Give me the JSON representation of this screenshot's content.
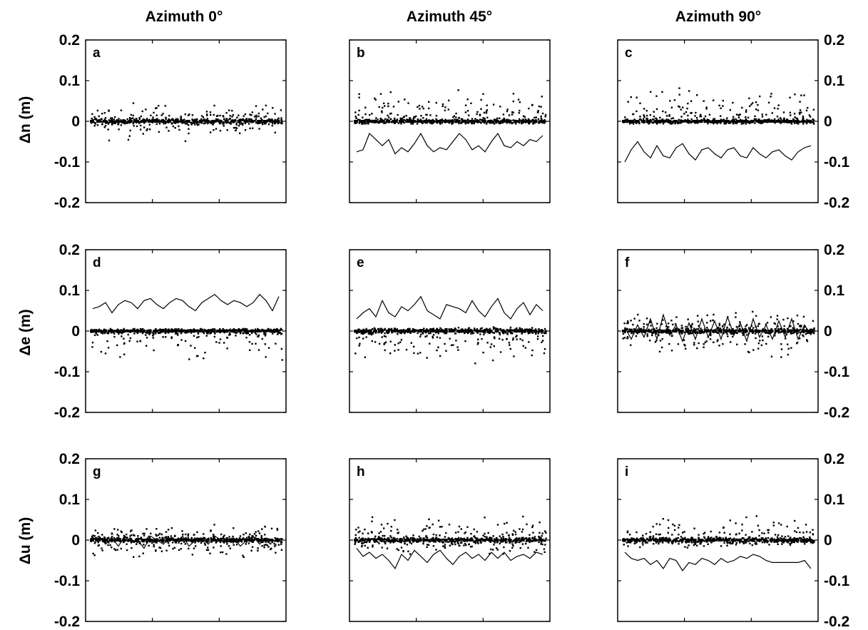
{
  "column_titles": [
    "Azimuth 0°",
    "Azimuth 45°",
    "Azimuth 90°"
  ],
  "row_ylabels": [
    "Δn (m)",
    "Δe (m)",
    "Δu (m)"
  ],
  "colors": {
    "ink": "#000000",
    "background": "#ffffff"
  },
  "chart_data": [
    {
      "type": "scatter",
      "panel": "a",
      "row": 0,
      "col": 0,
      "title": "",
      "xlabel": "",
      "ylabel": "Δn (m)",
      "ylim": [
        -0.2,
        0.2
      ],
      "yticks": [
        0.2,
        0.1,
        0,
        -0.1,
        -0.2
      ],
      "ytick_labels": [
        "0.2",
        "0.1",
        "0",
        "-0.1",
        "-0.2"
      ],
      "grid": false,
      "scatter": {
        "center": 0.0,
        "up": 0.045,
        "down": -0.05
      },
      "line": null
    },
    {
      "type": "scatter",
      "panel": "b",
      "row": 0,
      "col": 1,
      "title": "",
      "xlabel": "",
      "ylabel": "",
      "ylim": [
        -0.2,
        0.2
      ],
      "yticks": [
        0.2,
        0.1,
        0,
        -0.1,
        -0.2
      ],
      "ytick_labels": [],
      "grid": false,
      "scatter": {
        "center": 0.0,
        "up": 0.085,
        "down": -0.005
      },
      "line": [
        -0.075,
        -0.07,
        -0.03,
        -0.045,
        -0.06,
        -0.045,
        -0.08,
        -0.065,
        -0.075,
        -0.055,
        -0.03,
        -0.06,
        -0.075,
        -0.065,
        -0.07,
        -0.05,
        -0.03,
        -0.045,
        -0.07,
        -0.06,
        -0.075,
        -0.05,
        -0.03,
        -0.06,
        -0.065,
        -0.05,
        -0.06,
        -0.045,
        -0.05,
        -0.035
      ]
    },
    {
      "type": "scatter",
      "panel": "c",
      "row": 0,
      "col": 2,
      "title": "",
      "xlabel": "",
      "ylabel": "Δn (m)",
      "ylim": [
        -0.2,
        0.2
      ],
      "yticks": [
        0.2,
        0.1,
        0,
        -0.1,
        -0.2
      ],
      "ytick_labels": [
        "0.2",
        "0.1",
        "0",
        "-0.1",
        "-0.2"
      ],
      "grid": false,
      "scatter": {
        "center": 0.0,
        "up": 0.095,
        "down": -0.003
      },
      "line": [
        -0.1,
        -0.07,
        -0.05,
        -0.075,
        -0.09,
        -0.06,
        -0.085,
        -0.09,
        -0.065,
        -0.055,
        -0.08,
        -0.095,
        -0.07,
        -0.065,
        -0.08,
        -0.09,
        -0.07,
        -0.065,
        -0.085,
        -0.09,
        -0.065,
        -0.08,
        -0.09,
        -0.075,
        -0.07,
        -0.085,
        -0.095,
        -0.075,
        -0.065,
        -0.06
      ]
    },
    {
      "type": "scatter",
      "panel": "d",
      "row": 1,
      "col": 0,
      "title": "",
      "xlabel": "",
      "ylabel": "Δe (m)",
      "ylim": [
        -0.2,
        0.2
      ],
      "yticks": [
        0.2,
        0.1,
        0,
        -0.1,
        -0.2
      ],
      "ytick_labels": [
        "0.2",
        "0.1",
        "0",
        "-0.1",
        "-0.2"
      ],
      "grid": false,
      "scatter": {
        "center": 0.0,
        "up": 0.005,
        "down": -0.09
      },
      "line": [
        0.055,
        0.06,
        0.07,
        0.045,
        0.065,
        0.075,
        0.07,
        0.055,
        0.075,
        0.08,
        0.065,
        0.055,
        0.07,
        0.08,
        0.075,
        0.06,
        0.05,
        0.07,
        0.08,
        0.09,
        0.075,
        0.065,
        0.075,
        0.07,
        0.06,
        0.07,
        0.09,
        0.075,
        0.05,
        0.085
      ]
    },
    {
      "type": "scatter",
      "panel": "e",
      "row": 1,
      "col": 1,
      "title": "",
      "xlabel": "",
      "ylabel": "",
      "ylim": [
        -0.2,
        0.2
      ],
      "yticks": [
        0.2,
        0.1,
        0,
        -0.1,
        -0.2
      ],
      "ytick_labels": [],
      "grid": false,
      "scatter": {
        "center": 0.0,
        "up": 0.01,
        "down": -0.09
      },
      "line": [
        0.03,
        0.045,
        0.055,
        0.035,
        0.075,
        0.045,
        0.035,
        0.06,
        0.05,
        0.065,
        0.085,
        0.05,
        0.04,
        0.03,
        0.065,
        0.06,
        0.055,
        0.045,
        0.075,
        0.05,
        0.035,
        0.06,
        0.08,
        0.045,
        0.03,
        0.055,
        0.07,
        0.04,
        0.065,
        0.05
      ]
    },
    {
      "type": "scatter",
      "panel": "f",
      "row": 1,
      "col": 2,
      "title": "",
      "xlabel": "",
      "ylabel": "Δe (m)",
      "ylim": [
        -0.2,
        0.2
      ],
      "yticks": [
        0.2,
        0.1,
        0,
        -0.1,
        -0.2
      ],
      "ytick_labels": [
        "0.2",
        "0.1",
        "0",
        "-0.1",
        "-0.2"
      ],
      "grid": false,
      "scatter": {
        "center": 0.0,
        "up": 0.055,
        "down": -0.07
      },
      "line": [
        0.01,
        -0.02,
        0.015,
        -0.015,
        0.03,
        -0.02,
        0.04,
        -0.01,
        0.015,
        -0.025,
        0.02,
        -0.02,
        0.03,
        -0.015,
        0.025,
        -0.02,
        0.035,
        -0.01,
        0.02,
        -0.025,
        0.03,
        -0.015,
        0.015,
        -0.02,
        0.025,
        -0.015,
        0.03,
        -0.02,
        0.015,
        -0.01
      ]
    },
    {
      "type": "scatter",
      "panel": "g",
      "row": 2,
      "col": 0,
      "title": "",
      "xlabel": "",
      "ylabel": "Δu (m)",
      "ylim": [
        -0.2,
        0.2
      ],
      "yticks": [
        0.2,
        0.1,
        0,
        -0.1,
        -0.2
      ],
      "ytick_labels": [
        "0.2",
        "0.1",
        "0",
        "-0.1",
        "-0.2"
      ],
      "grid": false,
      "scatter": {
        "center": 0.0,
        "up": 0.04,
        "down": -0.05
      },
      "line": [
        0.0,
        0.01,
        -0.01,
        0.005,
        -0.015,
        0.01,
        -0.005,
        0.0,
        -0.02,
        0.01,
        0.0,
        -0.01,
        0.005,
        -0.005,
        0.01,
        -0.015,
        0.0,
        0.005,
        -0.01,
        0.01,
        0.0,
        -0.005,
        0.005,
        -0.015,
        0.0,
        0.01,
        -0.01,
        0.005,
        0.0,
        -0.005
      ]
    },
    {
      "type": "scatter",
      "panel": "h",
      "row": 2,
      "col": 1,
      "title": "",
      "xlabel": "",
      "ylabel": "",
      "ylim": [
        -0.2,
        0.2
      ],
      "yticks": [
        0.2,
        0.1,
        0,
        -0.1,
        -0.2
      ],
      "ytick_labels": [],
      "grid": false,
      "scatter": {
        "center": 0.0,
        "up": 0.06,
        "down": -0.04
      },
      "line": [
        -0.02,
        -0.04,
        -0.03,
        -0.045,
        -0.035,
        -0.05,
        -0.07,
        -0.035,
        -0.05,
        -0.025,
        -0.04,
        -0.055,
        -0.035,
        -0.025,
        -0.045,
        -0.06,
        -0.04,
        -0.03,
        -0.045,
        -0.035,
        -0.05,
        -0.03,
        -0.045,
        -0.03,
        -0.05,
        -0.04,
        -0.035,
        -0.045,
        -0.03,
        -0.035
      ]
    },
    {
      "type": "scatter",
      "panel": "i",
      "row": 2,
      "col": 2,
      "title": "",
      "xlabel": "",
      "ylabel": "Δu (m)",
      "ylim": [
        -0.2,
        0.2
      ],
      "yticks": [
        0.2,
        0.1,
        0,
        -0.1,
        -0.2
      ],
      "ytick_labels": [
        "0.2",
        "0.1",
        "0",
        "-0.1",
        "-0.2"
      ],
      "grid": false,
      "scatter": {
        "center": 0.0,
        "up": 0.065,
        "down": -0.02
      },
      "line": [
        -0.03,
        -0.045,
        -0.05,
        -0.045,
        -0.06,
        -0.05,
        -0.07,
        -0.045,
        -0.05,
        -0.075,
        -0.055,
        -0.06,
        -0.045,
        -0.05,
        -0.06,
        -0.045,
        -0.055,
        -0.05,
        -0.04,
        -0.045,
        -0.035,
        -0.04,
        -0.05,
        -0.055,
        -0.055,
        -0.055,
        -0.055,
        -0.055,
        -0.05,
        -0.07
      ]
    }
  ]
}
